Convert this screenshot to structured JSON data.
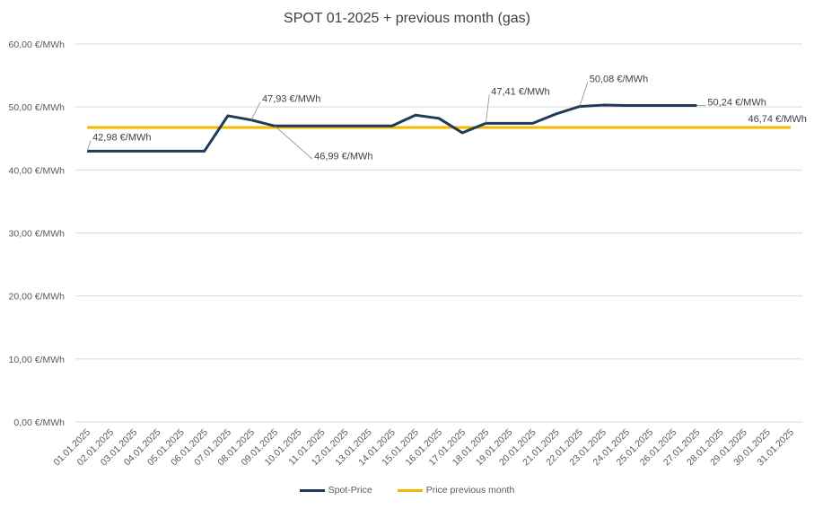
{
  "chart_data": {
    "type": "line",
    "title": "SPOT 01-2025 + previous month (gas)",
    "xlabel": "",
    "ylabel": "",
    "ylim": [
      0,
      60
    ],
    "yticks": [
      "0,00 €/MWh",
      "10,00 €/MWh",
      "20,00 €/MWh",
      "30,00 €/MWh",
      "40,00 €/MWh",
      "50,00 €/MWh",
      "60,00 €/MWh"
    ],
    "categories": [
      "01.01.2025",
      "02.01.2025",
      "03.01.2025",
      "04.01.2025",
      "05.01.2025",
      "06.01.2025",
      "07.01.2025",
      "08.01.2025",
      "09.01.2025",
      "10.01.2025",
      "11.01.2025",
      "12.01.2025",
      "13.01.2025",
      "14.01.2025",
      "15.01.2025",
      "16.01.2025",
      "17.01.2025",
      "18.01.2025",
      "19.01.2025",
      "20.01.2025",
      "21.01.2025",
      "22.01.2025",
      "23.01.2025",
      "24.01.2025",
      "25.01.2025",
      "26.01.2025",
      "27.01.2025",
      "28.01.2025",
      "29.01.2025",
      "30.01.2025",
      "31.01.2025"
    ],
    "series": [
      {
        "name": "Spot-Price",
        "color": "#1f3b57",
        "values": [
          42.98,
          42.98,
          42.98,
          42.98,
          42.98,
          42.98,
          48.6,
          47.93,
          46.99,
          46.99,
          46.99,
          46.99,
          46.99,
          46.99,
          48.7,
          48.2,
          45.9,
          47.41,
          47.41,
          47.41,
          48.9,
          50.08,
          50.3,
          50.24,
          50.24,
          50.24,
          50.24,
          null,
          null,
          null,
          null
        ]
      },
      {
        "name": "Price previous month",
        "color": "#f5b800",
        "values": [
          46.74,
          46.74,
          46.74,
          46.74,
          46.74,
          46.74,
          46.74,
          46.74,
          46.74,
          46.74,
          46.74,
          46.74,
          46.74,
          46.74,
          46.74,
          46.74,
          46.74,
          46.74,
          46.74,
          46.74,
          46.74,
          46.74,
          46.74,
          46.74,
          46.74,
          46.74,
          46.74,
          46.74,
          46.74,
          46.74,
          46.74
        ]
      }
    ],
    "annotations": [
      {
        "text": "42,98 €/MWh",
        "series": 0,
        "index": 0
      },
      {
        "text": "47,93 €/MWh",
        "series": 0,
        "index": 7
      },
      {
        "text": "46,99 €/MWh",
        "series": 0,
        "index": 8
      },
      {
        "text": "47,41 €/MWh",
        "series": 0,
        "index": 17
      },
      {
        "text": "50,08 €/MWh",
        "series": 0,
        "index": 21
      },
      {
        "text": "50,24 €/MWh",
        "series": 0,
        "index": 26
      },
      {
        "text": "46,74 €/MWh",
        "series": 1,
        "index": 30
      }
    ],
    "legend": [
      "Spot-Price",
      "Price previous month"
    ],
    "legend_position": "bottom",
    "grid": true
  }
}
